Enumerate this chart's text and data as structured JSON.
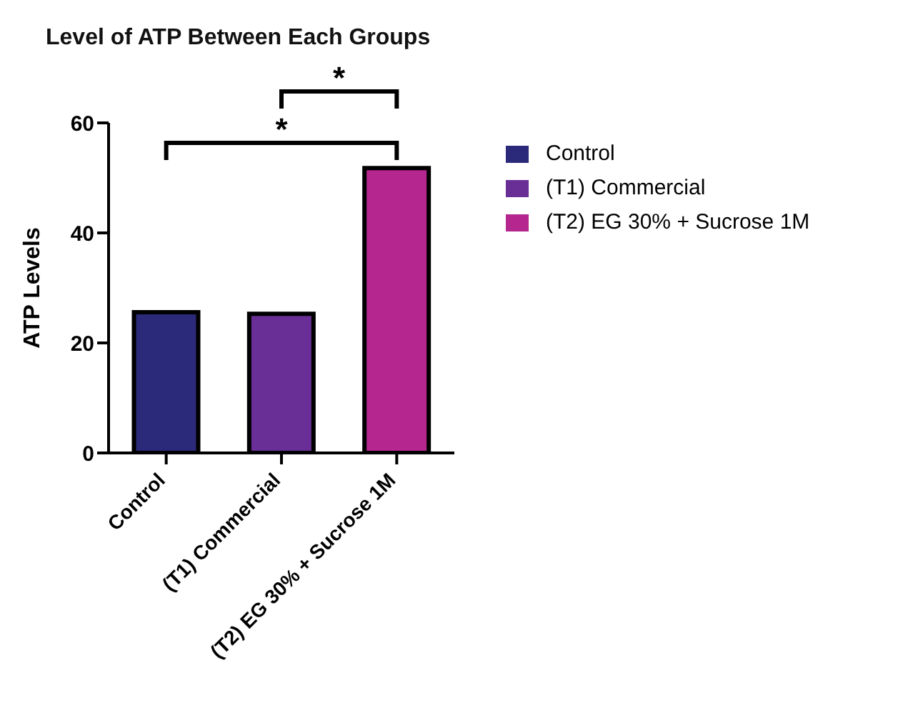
{
  "chart_data": {
    "type": "bar",
    "title": "Level of ATP Between Each Groups",
    "ylabel": "ATP Levels",
    "categories": [
      "Control",
      "(T1) Commercial",
      "(T2) EG 30% + Sucrose 1M"
    ],
    "series": [
      {
        "name": "Control",
        "color": "#2b2a7a",
        "values": [
          25.6,
          null,
          null
        ]
      },
      {
        "name": "(T1) Commercial",
        "color": "#6a2f96",
        "values": [
          null,
          25.3,
          null
        ]
      },
      {
        "name": "(T2) EG 30% + Sucrose 1M",
        "color": "#b5268f",
        "values": [
          null,
          null,
          51.8
        ]
      }
    ],
    "ylim": [
      0,
      60
    ],
    "yticks": [
      0,
      20,
      40,
      60
    ],
    "grid": false,
    "legend": "right",
    "annotations": [
      "*",
      "*"
    ]
  }
}
